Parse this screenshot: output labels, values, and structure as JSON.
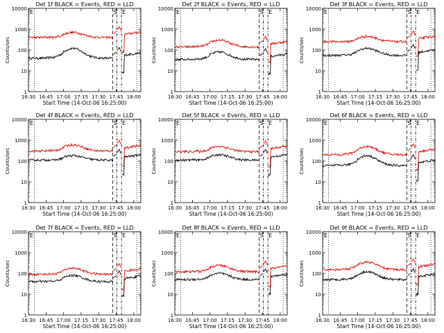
{
  "figure": {
    "xlabel": "Start Time (14-Oct-06 16:25:00)",
    "ylabel": "Counts/sec",
    "x_ticks": [
      "16:30",
      "16:45",
      "17:00",
      "17:15",
      "17:30",
      "17:45",
      "18:00"
    ],
    "y_ticks": [
      "1",
      "10",
      "100",
      "1000",
      "10000"
    ],
    "markers": {
      "S": "S",
      "E": "E"
    },
    "colors": {
      "events": "#000000",
      "lld": "#e00000",
      "axes": "#000000"
    }
  },
  "chart_data": [
    {
      "type": "line",
      "title": "Det 1f BLACK = Events, RED = LLD",
      "xlim_min": [
        5,
        101
      ],
      "ylim": [
        1,
        10000
      ],
      "y_scale": "log",
      "series": [
        {
          "name": "Events",
          "color": "#000000",
          "base": 40,
          "hump_peak": 120
        },
        {
          "name": "LLD",
          "color": "#e00000",
          "base": 400,
          "hump_peak": 700
        }
      ]
    },
    {
      "type": "line",
      "title": "Det 2f BLACK = Events, RED = LLD",
      "xlim_min": [
        5,
        101
      ],
      "ylim": [
        1,
        10000
      ],
      "y_scale": "log",
      "series": [
        {
          "name": "Events",
          "color": "#000000",
          "base": 35,
          "hump_peak": 80
        },
        {
          "name": "LLD",
          "color": "#e00000",
          "base": 140,
          "hump_peak": 300
        }
      ]
    },
    {
      "type": "line",
      "title": "Det 3f BLACK = Events, RED = LLD",
      "xlim_min": [
        5,
        101
      ],
      "ylim": [
        1,
        10000
      ],
      "y_scale": "log",
      "series": [
        {
          "name": "Events",
          "color": "#000000",
          "base": 55,
          "hump_peak": 120
        },
        {
          "name": "LLD",
          "color": "#e00000",
          "base": 250,
          "hump_peak": 450
        }
      ]
    },
    {
      "type": "line",
      "title": "Det 4f BLACK = Events, RED = LLD",
      "xlim_min": [
        5,
        101
      ],
      "ylim": [
        1,
        10000
      ],
      "y_scale": "log",
      "series": [
        {
          "name": "Events",
          "color": "#000000",
          "base": 110,
          "hump_peak": 180
        },
        {
          "name": "LLD",
          "color": "#e00000",
          "base": 300,
          "hump_peak": 600
        }
      ]
    },
    {
      "type": "line",
      "title": "Det 5f BLACK = Events, RED = LLD",
      "xlim_min": [
        5,
        101
      ],
      "ylim": [
        1,
        10000
      ],
      "y_scale": "log",
      "series": [
        {
          "name": "Events",
          "color": "#000000",
          "base": 110,
          "hump_peak": 200
        },
        {
          "name": "LLD",
          "color": "#e00000",
          "base": 280,
          "hump_peak": 500
        }
      ]
    },
    {
      "type": "line",
      "title": "Det 6f BLACK = Events, RED = LLD",
      "xlim_min": [
        5,
        101
      ],
      "ylim": [
        1,
        10000
      ],
      "y_scale": "log",
      "series": [
        {
          "name": "Events",
          "color": "#000000",
          "base": 60,
          "hump_peak": 180
        },
        {
          "name": "LLD",
          "color": "#e00000",
          "base": 200,
          "hump_peak": 500
        }
      ]
    },
    {
      "type": "line",
      "title": "Det 7f BLACK = Events, RED = LLD",
      "xlim_min": [
        5,
        101
      ],
      "ylim": [
        1,
        10000
      ],
      "y_scale": "log",
      "series": [
        {
          "name": "Events",
          "color": "#000000",
          "base": 40,
          "hump_peak": 80
        },
        {
          "name": "LLD",
          "color": "#e00000",
          "base": 90,
          "hump_peak": 180
        }
      ]
    },
    {
      "type": "line",
      "title": "Det 8f BLACK = Events, RED = LLD",
      "xlim_min": [
        5,
        101
      ],
      "ylim": [
        1,
        10000
      ],
      "y_scale": "log",
      "series": [
        {
          "name": "Events",
          "color": "#000000",
          "base": 50,
          "hump_peak": 100
        },
        {
          "name": "LLD",
          "color": "#e00000",
          "base": 120,
          "hump_peak": 240
        }
      ]
    },
    {
      "type": "line",
      "title": "Det 9f BLACK = Events, RED = LLD",
      "xlim_min": [
        5,
        101
      ],
      "ylim": [
        1,
        10000
      ],
      "y_scale": "log",
      "series": [
        {
          "name": "Events",
          "color": "#000000",
          "base": 50,
          "hump_peak": 120
        },
        {
          "name": "LLD",
          "color": "#e00000",
          "base": 150,
          "hump_peak": 350
        }
      ]
    }
  ]
}
